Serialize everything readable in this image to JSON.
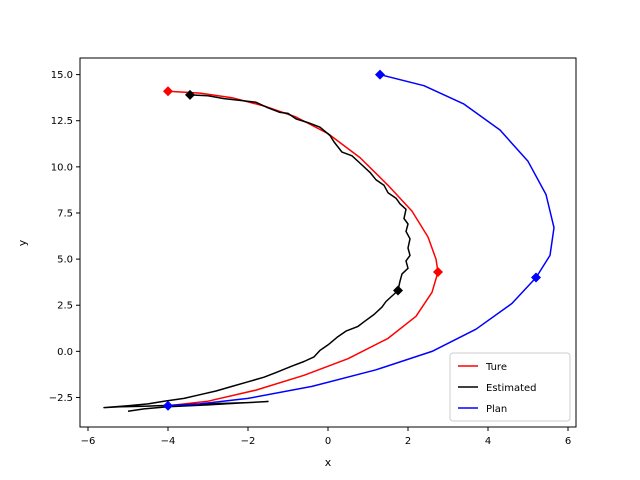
{
  "chart_data": {
    "type": "line",
    "title": "",
    "xlabel": "x",
    "ylabel": "y",
    "xlim": [
      -6.2,
      6.2
    ],
    "ylim": [
      -4.1,
      15.9
    ],
    "xticks": [
      -6,
      -4,
      -2,
      0,
      2,
      4,
      6
    ],
    "yticks": [
      -2.5,
      0.0,
      2.5,
      5.0,
      7.5,
      10.0,
      12.5,
      15.0
    ],
    "xtick_labels": [
      "−6",
      "−4",
      "−2",
      "0",
      "2",
      "4",
      "6"
    ],
    "ytick_labels": [
      "−2.5",
      "0.0",
      "2.5",
      "5.0",
      "7.5",
      "10.0",
      "12.5",
      "15.0"
    ],
    "grid": false,
    "legend_position": "lower-right",
    "series": [
      {
        "name": "Ture",
        "color": "#ff0000",
        "points": [
          [
            -4.0,
            14.1
          ],
          [
            -3.2,
            14.0
          ],
          [
            -2.4,
            13.75
          ],
          [
            -1.6,
            13.3
          ],
          [
            -0.8,
            12.7
          ],
          [
            0.0,
            11.8
          ],
          [
            0.8,
            10.5
          ],
          [
            1.5,
            9.0
          ],
          [
            2.1,
            7.6
          ],
          [
            2.5,
            6.2
          ],
          [
            2.7,
            5.0
          ],
          [
            2.75,
            4.3
          ],
          [
            2.6,
            3.2
          ],
          [
            2.2,
            1.9
          ],
          [
            1.5,
            0.7
          ],
          [
            0.5,
            -0.4
          ],
          [
            -0.6,
            -1.3
          ],
          [
            -1.8,
            -2.1
          ],
          [
            -3.0,
            -2.7
          ],
          [
            -4.0,
            -2.95
          ]
        ],
        "markers": [
          [
            -4.0,
            14.1
          ],
          [
            2.75,
            4.3
          ]
        ]
      },
      {
        "name": "Estimated",
        "color": "#000000",
        "points": [
          [
            -3.45,
            13.9
          ],
          [
            -3.0,
            13.85
          ],
          [
            -2.6,
            13.7
          ],
          [
            -2.2,
            13.6
          ],
          [
            -1.8,
            13.5
          ],
          [
            -1.5,
            13.2
          ],
          [
            -1.2,
            12.95
          ],
          [
            -1.0,
            12.9
          ],
          [
            -0.8,
            12.6
          ],
          [
            -0.5,
            12.4
          ],
          [
            -0.2,
            12.15
          ],
          [
            0.05,
            11.7
          ],
          [
            0.15,
            11.35
          ],
          [
            0.35,
            10.8
          ],
          [
            0.6,
            10.6
          ],
          [
            0.85,
            10.1
          ],
          [
            1.05,
            9.7
          ],
          [
            1.2,
            9.3
          ],
          [
            1.4,
            9.0
          ],
          [
            1.5,
            8.6
          ],
          [
            1.7,
            8.3
          ],
          [
            1.8,
            8.0
          ],
          [
            1.95,
            7.7
          ],
          [
            1.9,
            7.2
          ],
          [
            2.0,
            6.9
          ],
          [
            1.95,
            6.5
          ],
          [
            2.05,
            6.1
          ],
          [
            2.0,
            5.6
          ],
          [
            2.05,
            5.2
          ],
          [
            1.95,
            4.9
          ],
          [
            2.0,
            4.5
          ],
          [
            1.85,
            4.2
          ],
          [
            1.8,
            3.8
          ],
          [
            1.75,
            3.3
          ],
          [
            1.6,
            3.0
          ],
          [
            1.45,
            2.7
          ],
          [
            1.35,
            2.4
          ],
          [
            1.15,
            2.0
          ],
          [
            0.9,
            1.6
          ],
          [
            0.75,
            1.35
          ],
          [
            0.45,
            1.1
          ],
          [
            0.25,
            0.8
          ],
          [
            0.0,
            0.35
          ],
          [
            -0.2,
            0.05
          ],
          [
            -0.35,
            -0.3
          ],
          [
            -0.6,
            -0.55
          ],
          [
            -0.9,
            -0.8
          ],
          [
            -1.3,
            -1.15
          ],
          [
            -1.6,
            -1.4
          ],
          [
            -2.0,
            -1.65
          ],
          [
            -2.4,
            -1.9
          ],
          [
            -2.8,
            -2.15
          ],
          [
            -3.2,
            -2.35
          ],
          [
            -3.6,
            -2.55
          ],
          [
            -4.1,
            -2.7
          ],
          [
            -4.5,
            -2.85
          ],
          [
            -5.0,
            -2.95
          ],
          [
            -5.6,
            -3.05
          ],
          [
            -5.2,
            -3.0
          ],
          [
            -4.6,
            -2.98
          ],
          [
            -4.0,
            -2.93
          ],
          [
            -3.0,
            -2.85
          ],
          [
            -2.0,
            -2.78
          ],
          [
            -1.5,
            -2.72
          ],
          [
            -2.2,
            -2.8
          ],
          [
            -3.0,
            -2.9
          ],
          [
            -4.0,
            -3.0
          ],
          [
            -4.6,
            -3.12
          ],
          [
            -5.0,
            -3.25
          ]
        ],
        "markers": [
          [
            -3.45,
            13.9
          ],
          [
            1.75,
            3.3
          ]
        ]
      },
      {
        "name": "Plan",
        "color": "#0000ff",
        "points": [
          [
            1.3,
            15.0
          ],
          [
            2.4,
            14.4
          ],
          [
            3.4,
            13.4
          ],
          [
            4.3,
            12.0
          ],
          [
            5.0,
            10.3
          ],
          [
            5.45,
            8.5
          ],
          [
            5.65,
            6.7
          ],
          [
            5.55,
            5.2
          ],
          [
            5.2,
            4.0
          ],
          [
            4.6,
            2.6
          ],
          [
            3.7,
            1.2
          ],
          [
            2.6,
            0.0
          ],
          [
            1.2,
            -1.0
          ],
          [
            -0.4,
            -1.9
          ],
          [
            -2.0,
            -2.55
          ],
          [
            -3.2,
            -2.85
          ],
          [
            -4.0,
            -2.95
          ]
        ],
        "markers": [
          [
            1.3,
            15.0
          ],
          [
            5.2,
            4.0
          ],
          [
            -4.0,
            -2.95
          ]
        ]
      }
    ]
  }
}
